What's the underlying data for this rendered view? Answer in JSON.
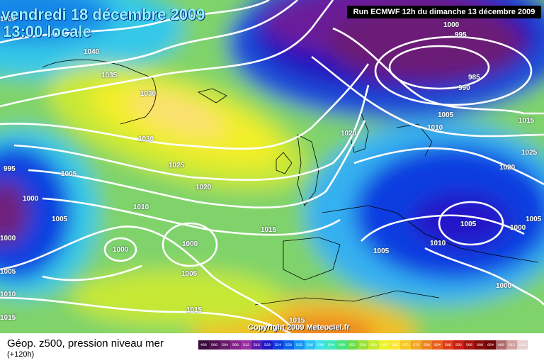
{
  "header": {
    "valid_date": "vendredi 18 décembre 2009",
    "local_time": "13:00 locale",
    "run_info": "Run ECMWF 12h du dimanche 13 décembre 2009"
  },
  "copyright": "Copyright 2009 Meteociel.fr",
  "legend": {
    "title": "Géop. z500, pression niveau mer",
    "lead_time": "(+120h)",
    "scale": [
      {
        "label": "496",
        "color": "#3a0a3a"
      },
      {
        "label": "500",
        "color": "#52104f"
      },
      {
        "label": "504",
        "color": "#6a1a6c"
      },
      {
        "label": "508",
        "color": "#85258a"
      },
      {
        "label": "512",
        "color": "#9a2fa5"
      },
      {
        "label": "516",
        "color": "#5a1cb0"
      },
      {
        "label": "520",
        "color": "#2018c8"
      },
      {
        "label": "524",
        "color": "#0c3ee0"
      },
      {
        "label": "528",
        "color": "#0a64ec"
      },
      {
        "label": "532",
        "color": "#1894f0"
      },
      {
        "label": "536",
        "color": "#2cc0f4"
      },
      {
        "label": "540",
        "color": "#3fe0ea"
      },
      {
        "label": "544",
        "color": "#40e8b8"
      },
      {
        "label": "548",
        "color": "#48e47c"
      },
      {
        "label": "552",
        "color": "#6ade48"
      },
      {
        "label": "556",
        "color": "#9ae23a"
      },
      {
        "label": "560",
        "color": "#c8ea30"
      },
      {
        "label": "564",
        "color": "#eef228"
      },
      {
        "label": "568",
        "color": "#fbe638"
      },
      {
        "label": "572",
        "color": "#f8c828"
      },
      {
        "label": "576",
        "color": "#f4a624"
      },
      {
        "label": "580",
        "color": "#ee8420"
      },
      {
        "label": "584",
        "color": "#e8601c"
      },
      {
        "label": "588",
        "color": "#de3c18"
      },
      {
        "label": "592",
        "color": "#c81e14"
      },
      {
        "label": "596",
        "color": "#a8140e"
      },
      {
        "label": "600",
        "color": "#8a0c0a"
      },
      {
        "label": "604",
        "color": "#700808"
      },
      {
        "label": "608",
        "color": "#b06a6a"
      },
      {
        "label": "612",
        "color": "#d0a0a0"
      },
      {
        "label": "616",
        "color": "#e6d0d0"
      }
    ]
  },
  "isobars": [
    {
      "id": "a",
      "text": "1040"
    },
    {
      "id": "b",
      "text": "1035"
    },
    {
      "id": "c",
      "text": "1030"
    },
    {
      "id": "d",
      "text": "1030"
    },
    {
      "id": "e",
      "text": "1025"
    },
    {
      "id": "f",
      "text": "1020"
    },
    {
      "id": "g",
      "text": "1015"
    },
    {
      "id": "h",
      "text": "1010"
    },
    {
      "id": "i",
      "text": "1005"
    },
    {
      "id": "j",
      "text": "1005"
    },
    {
      "id": "k",
      "text": "1000"
    },
    {
      "id": "l",
      "text": "1000"
    },
    {
      "id": "m",
      "text": "1000"
    },
    {
      "id": "n",
      "text": "1005"
    },
    {
      "id": "o",
      "text": "995"
    },
    {
      "id": "p",
      "text": "1000"
    },
    {
      "id": "q",
      "text": "1005"
    },
    {
      "id": "r",
      "text": "1010"
    },
    {
      "id": "s",
      "text": "1015"
    },
    {
      "id": "t",
      "text": "1015"
    },
    {
      "id": "u",
      "text": "1000"
    },
    {
      "id": "v",
      "text": "995"
    },
    {
      "id": "w",
      "text": "985"
    },
    {
      "id": "x",
      "text": "990"
    },
    {
      "id": "y",
      "text": "1005"
    },
    {
      "id": "z",
      "text": "1010"
    },
    {
      "id": "aa",
      "text": "1015"
    },
    {
      "id": "ab",
      "text": "1025"
    },
    {
      "id": "ac",
      "text": "1020"
    },
    {
      "id": "ad",
      "text": "1020"
    },
    {
      "id": "ae",
      "text": "1005"
    },
    {
      "id": "af",
      "text": "1000"
    },
    {
      "id": "ag",
      "text": "1005"
    },
    {
      "id": "ah",
      "text": "1010"
    },
    {
      "id": "ai",
      "text": "1005"
    },
    {
      "id": "aj",
      "text": "1000"
    },
    {
      "id": "ak",
      "text": "1015"
    },
    {
      "id": "al",
      "text": "1000"
    }
  ]
}
